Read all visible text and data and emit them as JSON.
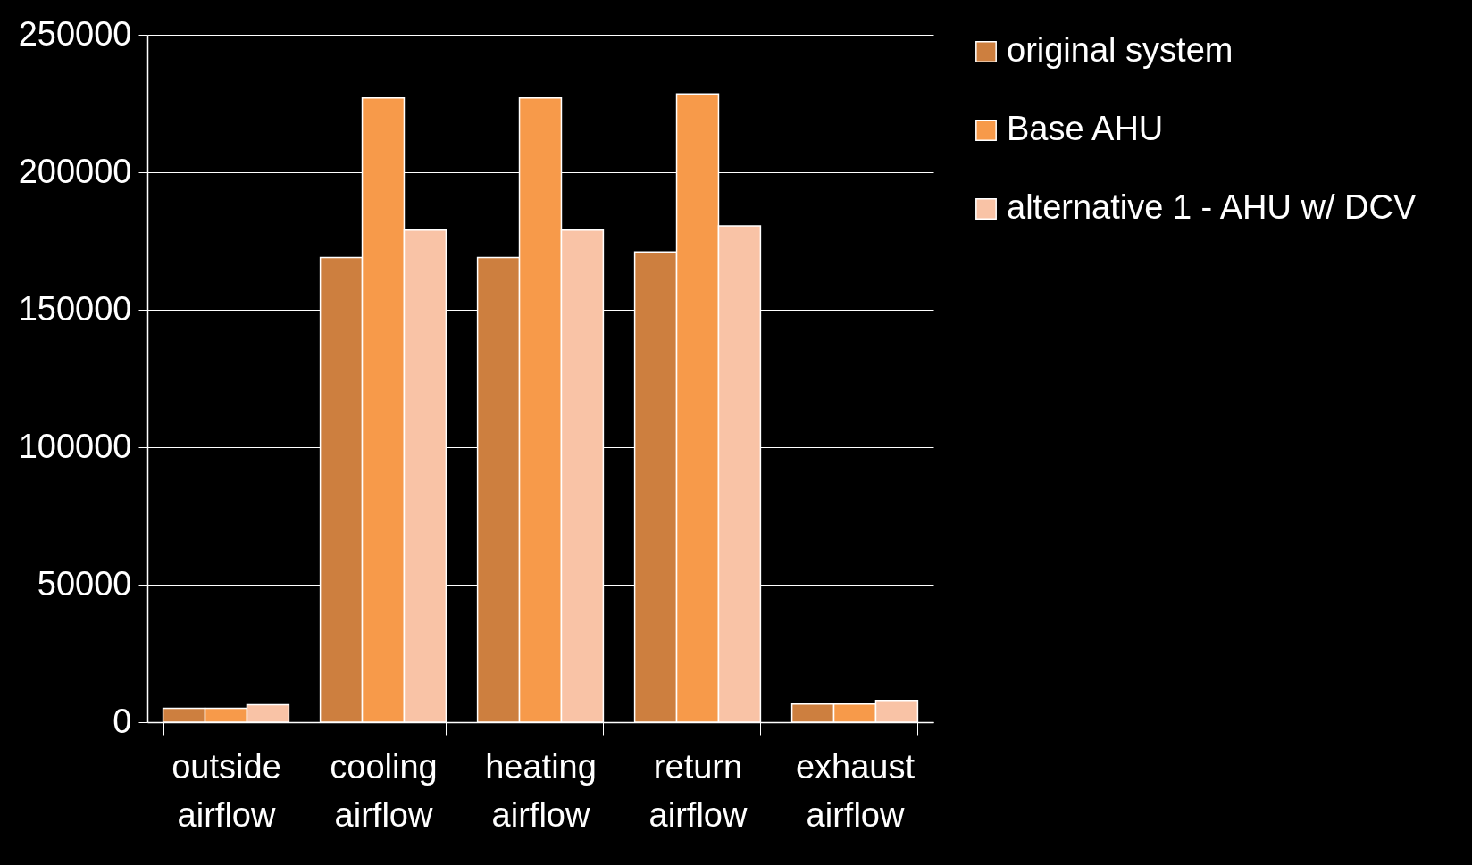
{
  "chart_data": {
    "type": "bar",
    "categories": [
      "outside airflow",
      "cooling airflow",
      "heating airflow",
      "return airflow",
      "exhaust airflow"
    ],
    "series": [
      {
        "name": "original system",
        "color": "#cd7f3f",
        "values": [
          5000,
          169000,
          169000,
          171000,
          6600
        ]
      },
      {
        "name": "Base AHU",
        "color": "#f79a4a",
        "values": [
          5000,
          227000,
          227000,
          228500,
          6600
        ]
      },
      {
        "name": "alternative 1 - AHU w/ DCV",
        "color": "#f9c3a6",
        "values": [
          6300,
          179000,
          179000,
          180500,
          7900
        ]
      }
    ],
    "ylim": [
      0,
      250000
    ],
    "yticks": [
      0,
      50000,
      100000,
      150000,
      200000,
      250000
    ],
    "grid": "y",
    "legend": "right"
  }
}
